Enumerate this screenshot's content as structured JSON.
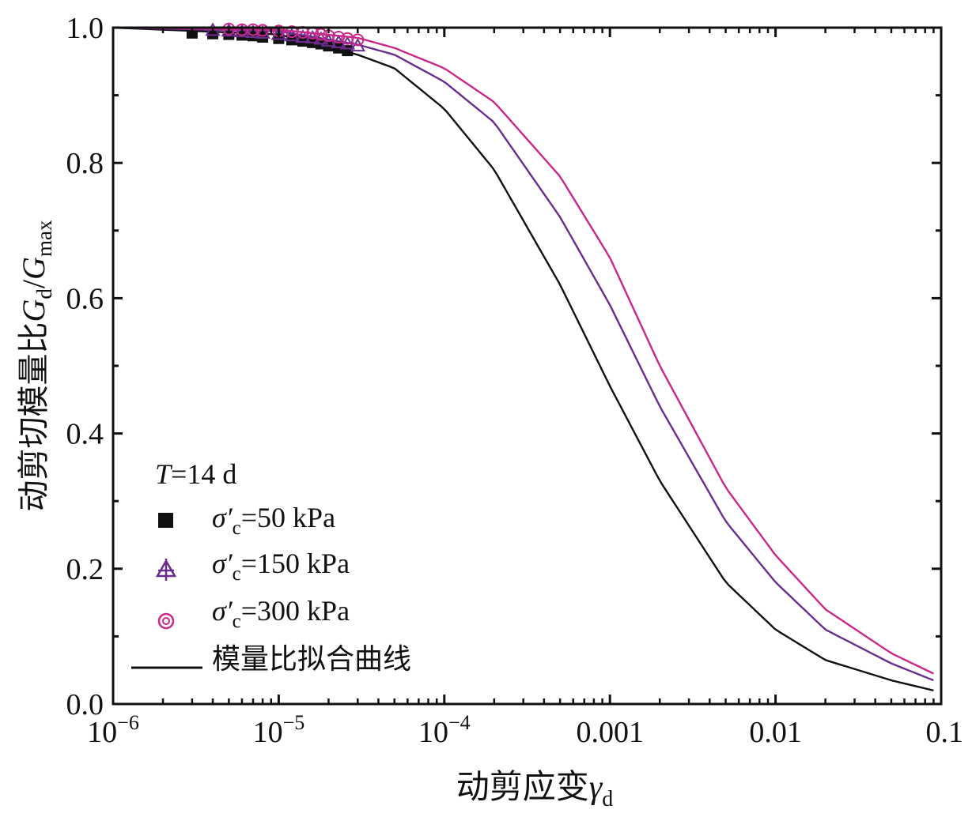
{
  "chart_data": {
    "type": "line",
    "xscale": "log",
    "xlim": [
      1e-06,
      0.1
    ],
    "ylim": [
      0.0,
      1.0
    ],
    "grid": false,
    "x_ticks": [
      {
        "value": 1e-06,
        "base": "10",
        "exp": "−6"
      },
      {
        "value": 1e-05,
        "base": "10",
        "exp": "−5"
      },
      {
        "value": 0.0001,
        "base": "10",
        "exp": "−4"
      },
      {
        "value": 0.001,
        "text": "0.001"
      },
      {
        "value": 0.01,
        "text": "0.01"
      },
      {
        "value": 0.1,
        "text": "0.1"
      }
    ],
    "y_ticks": [
      {
        "value": 0.0,
        "text": "0.0"
      },
      {
        "value": 0.2,
        "text": "0.2"
      },
      {
        "value": 0.4,
        "text": "0.4"
      },
      {
        "value": 0.6,
        "text": "0.6"
      },
      {
        "value": 0.8,
        "text": "0.8"
      },
      {
        "value": 1.0,
        "text": "1.0"
      }
    ],
    "xlabel": {
      "main": "动剪应变",
      "symbol": "γ",
      "sub": "d"
    },
    "ylabel": {
      "main": "动剪切模量比",
      "sym1": "G",
      "sub1": "d",
      "slash": "/",
      "sym2": "G",
      "sub2": "max"
    },
    "legend": {
      "position": "lower-left",
      "title": {
        "sym": "T",
        "rest": "=14 d"
      },
      "entries": [
        {
          "symbol": "σ′",
          "sub": "c",
          "rest": "=50 kPa",
          "marker": "square",
          "color": "#111111"
        },
        {
          "symbol": "σ′",
          "sub": "c",
          "rest": "=150 kPa",
          "marker": "triangle",
          "color": "#6a2d8f"
        },
        {
          "symbol": "σ′",
          "sub": "c",
          "rest": "=300 kPa",
          "marker": "circle",
          "color": "#c8288a"
        }
      ],
      "line_entry": {
        "label": "模量比拟合曲线",
        "color": "#111111"
      }
    },
    "series": [
      {
        "name": "σ′c=50 kPa",
        "color": "#111111",
        "marker": "square",
        "fit": {
          "x": [
            1e-06,
            1e-05,
            3e-05,
            5e-05,
            0.0001,
            0.0002,
            0.0005,
            0.001,
            0.002,
            0.005,
            0.01,
            0.02,
            0.05,
            0.09
          ],
          "y": [
            1.0,
            0.99,
            0.96,
            0.94,
            0.88,
            0.79,
            0.62,
            0.47,
            0.33,
            0.18,
            0.11,
            0.065,
            0.035,
            0.02
          ]
        },
        "points": {
          "x": [
            3e-06,
            4e-06,
            5e-06,
            6e-06,
            7e-06,
            8e-06,
            1e-05,
            1.2e-05,
            1.4e-05,
            1.6e-05,
            1.8e-05,
            2e-05,
            2.3e-05,
            2.6e-05
          ],
          "y": [
            0.992,
            0.991,
            0.99,
            0.989,
            0.988,
            0.986,
            0.984,
            0.982,
            0.98,
            0.978,
            0.976,
            0.973,
            0.97,
            0.966
          ]
        }
      },
      {
        "name": "σ′c=150 kPa",
        "color": "#6a2d8f",
        "marker": "triangle",
        "fit": {
          "x": [
            1e-06,
            1e-05,
            3e-05,
            5e-05,
            0.0001,
            0.0002,
            0.0005,
            0.001,
            0.002,
            0.005,
            0.01,
            0.02,
            0.05,
            0.09
          ],
          "y": [
            1.0,
            0.995,
            0.975,
            0.96,
            0.92,
            0.86,
            0.72,
            0.59,
            0.44,
            0.27,
            0.18,
            0.11,
            0.06,
            0.035
          ]
        },
        "points": {
          "x": [
            4e-06,
            5e-06,
            6e-06,
            7e-06,
            8e-06,
            1e-05,
            1.2e-05,
            1.4e-05,
            1.6e-05,
            1.8e-05,
            2e-05,
            2.3e-05,
            2.6e-05,
            3e-05
          ],
          "y": [
            0.996,
            0.995,
            0.994,
            0.993,
            0.992,
            0.99,
            0.988,
            0.986,
            0.985,
            0.983,
            0.98,
            0.978,
            0.976,
            0.973
          ]
        }
      },
      {
        "name": "σ′c=300 kPa",
        "color": "#c8288a",
        "marker": "circle",
        "fit": {
          "x": [
            1e-06,
            1e-05,
            3e-05,
            5e-05,
            0.0001,
            0.0002,
            0.0005,
            0.001,
            0.002,
            0.005,
            0.01,
            0.02,
            0.05,
            0.09
          ],
          "y": [
            1.0,
            0.997,
            0.985,
            0.97,
            0.94,
            0.89,
            0.78,
            0.66,
            0.5,
            0.32,
            0.22,
            0.14,
            0.075,
            0.045
          ]
        },
        "points": {
          "x": [
            5e-06,
            6e-06,
            7e-06,
            8e-06,
            1e-05,
            1.2e-05,
            1.4e-05,
            1.6e-05,
            1.8e-05,
            2e-05,
            2.3e-05,
            2.6e-05,
            3e-05
          ],
          "y": [
            0.998,
            0.997,
            0.997,
            0.996,
            0.995,
            0.994,
            0.993,
            0.992,
            0.99,
            0.988,
            0.986,
            0.984,
            0.982
          ]
        }
      }
    ]
  }
}
